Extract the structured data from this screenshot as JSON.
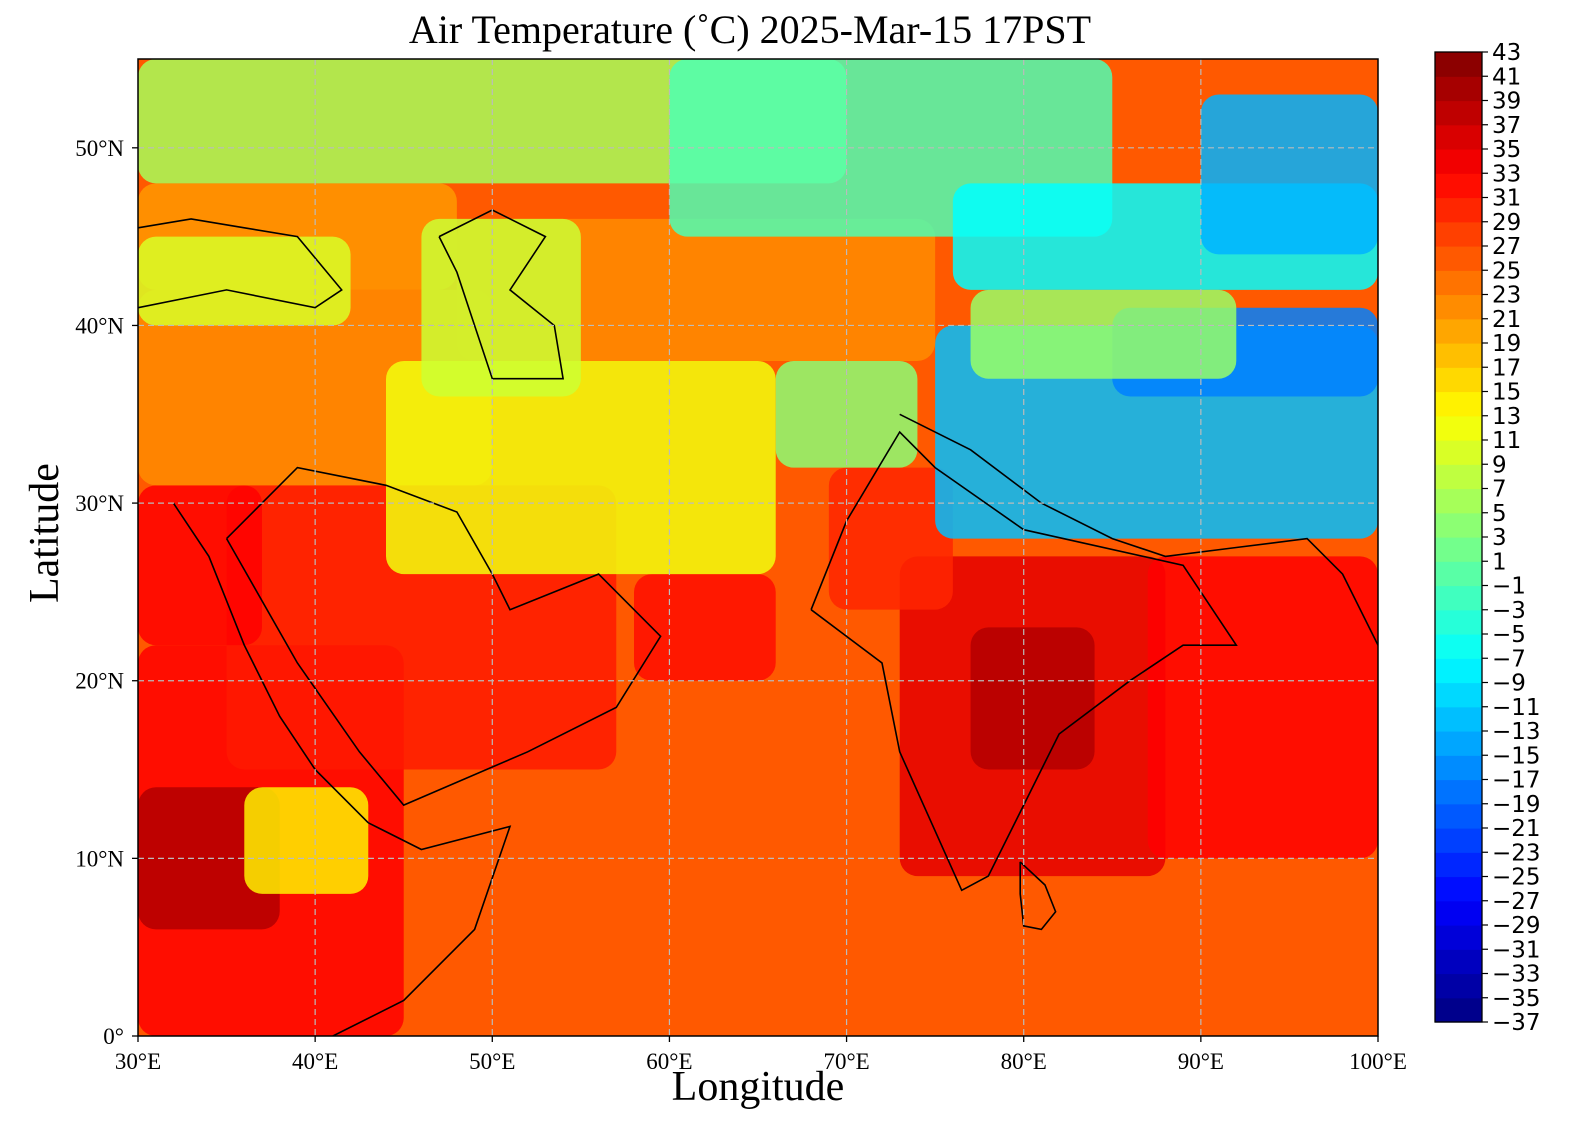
{
  "figure": {
    "title": "Air Temperature (˚C)  2025-Mar-15 17PST",
    "xlabel": "Longitude",
    "ylabel": "Latitude"
  },
  "chart_data": {
    "type": "heatmap",
    "title": "Air Temperature (˚C)  2025-Mar-15 17PST",
    "xlabel": "Longitude",
    "ylabel": "Latitude",
    "xlim": [
      30,
      100
    ],
    "ylim": [
      0,
      55
    ],
    "x_ticks": [
      30,
      40,
      50,
      60,
      70,
      80,
      90,
      100
    ],
    "x_tick_labels": [
      "30°E",
      "40°E",
      "50°E",
      "60°E",
      "70°E",
      "80°E",
      "90°E",
      "100°E"
    ],
    "y_ticks": [
      0,
      10,
      20,
      30,
      40,
      50
    ],
    "y_tick_labels": [
      "0°",
      "10°N",
      "20°N",
      "30°N",
      "40°N",
      "50°N"
    ],
    "grid": true,
    "colorbar": {
      "min": -37,
      "max": 43,
      "step": 2,
      "tick_labels": [
        "43",
        "41",
        "39",
        "37",
        "35",
        "33",
        "31",
        "29",
        "27",
        "25",
        "23",
        "21",
        "19",
        "17",
        "15",
        "13",
        "11",
        "9",
        "7",
        "5",
        "3",
        "1",
        "−1",
        "−3",
        "−5",
        "−7",
        "−9",
        "−11",
        "−13",
        "−15",
        "−17",
        "−19",
        "−21",
        "−23",
        "−25",
        "−27",
        "−29",
        "−31",
        "−33",
        "−35",
        "−37"
      ],
      "colormap": "jet"
    },
    "regions": [
      {
        "lon": [
          30,
          100
        ],
        "lat": [
          0,
          18
        ],
        "value": 26
      },
      {
        "lon": [
          30,
          45
        ],
        "lat": [
          0,
          22
        ],
        "value": 33
      },
      {
        "lon": [
          30,
          38
        ],
        "lat": [
          6,
          14
        ],
        "value": 39
      },
      {
        "lon": [
          36,
          43
        ],
        "lat": [
          8,
          14
        ],
        "value": 14
      },
      {
        "lon": [
          35,
          57
        ],
        "lat": [
          15,
          31
        ],
        "value": 31
      },
      {
        "lon": [
          30,
          37
        ],
        "lat": [
          22,
          31
        ],
        "value": 33
      },
      {
        "lon": [
          58,
          66
        ],
        "lat": [
          20,
          26
        ],
        "value": 32
      },
      {
        "lon": [
          73,
          88
        ],
        "lat": [
          9,
          27
        ],
        "value": 35
      },
      {
        "lon": [
          77,
          84
        ],
        "lat": [
          15,
          23
        ],
        "value": 39
      },
      {
        "lon": [
          87,
          100
        ],
        "lat": [
          10,
          27
        ],
        "value": 33
      },
      {
        "lon": [
          69,
          76
        ],
        "lat": [
          24,
          32
        ],
        "value": 30
      },
      {
        "lon": [
          30,
          50
        ],
        "lat": [
          31,
          42
        ],
        "value": 22
      },
      {
        "lon": [
          44,
          66
        ],
        "lat": [
          26,
          38
        ],
        "value": 12
      },
      {
        "lon": [
          66,
          74
        ],
        "lat": [
          32,
          38
        ],
        "value": 4
      },
      {
        "lon": [
          75,
          100
        ],
        "lat": [
          28,
          40
        ],
        "value": -12
      },
      {
        "lon": [
          85,
          100
        ],
        "lat": [
          36,
          41
        ],
        "value": -17
      },
      {
        "lon": [
          48,
          75
        ],
        "lat": [
          38,
          46
        ],
        "value": 22
      },
      {
        "lon": [
          30,
          48
        ],
        "lat": [
          42,
          48
        ],
        "value": 21
      },
      {
        "lon": [
          30,
          70
        ],
        "lat": [
          48,
          55
        ],
        "value": 6
      },
      {
        "lon": [
          60,
          85
        ],
        "lat": [
          45,
          55
        ],
        "value": -1
      },
      {
        "lon": [
          76,
          100
        ],
        "lat": [
          42,
          48
        ],
        "value": -7
      },
      {
        "lon": [
          90,
          100
        ],
        "lat": [
          44,
          53
        ],
        "value": -13
      },
      {
        "lon": [
          77,
          92
        ],
        "lat": [
          37,
          42
        ],
        "value": 5
      },
      {
        "lon": [
          46,
          55
        ],
        "lat": [
          36,
          46
        ],
        "value": 9
      },
      {
        "lon": [
          30,
          42
        ],
        "lat": [
          40,
          45
        ],
        "value": 10
      }
    ]
  }
}
